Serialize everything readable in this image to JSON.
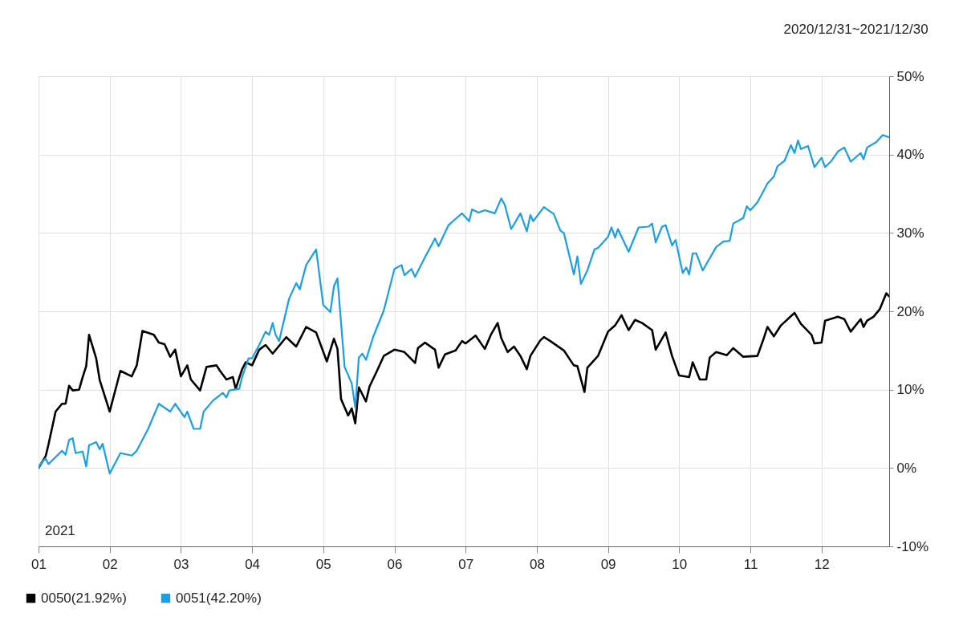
{
  "chart_data": {
    "type": "line",
    "subtitle": "2020/12/31~2021/12/30",
    "annotations": [
      "2021"
    ],
    "xlim": [
      1,
      12.95
    ],
    "xticks": [
      {
        "value": 1,
        "label": "01"
      },
      {
        "value": 2,
        "label": "02"
      },
      {
        "value": 3,
        "label": "03"
      },
      {
        "value": 4,
        "label": "04"
      },
      {
        "value": 5,
        "label": "05"
      },
      {
        "value": 6,
        "label": "06"
      },
      {
        "value": 7,
        "label": "07"
      },
      {
        "value": 8,
        "label": "08"
      },
      {
        "value": 9,
        "label": "09"
      },
      {
        "value": 10,
        "label": "10"
      },
      {
        "value": 11,
        "label": "11"
      },
      {
        "value": 12,
        "label": "12"
      }
    ],
    "ylim": [
      -10,
      50
    ],
    "yticks": [
      {
        "value": -10,
        "label": "-10%"
      },
      {
        "value": 0,
        "label": "0%"
      },
      {
        "value": 10,
        "label": "10%"
      },
      {
        "value": 20,
        "label": "20%"
      },
      {
        "value": 30,
        "label": "30%"
      },
      {
        "value": 40,
        "label": "40%"
      },
      {
        "value": 50,
        "label": "50%"
      }
    ],
    "grid": true,
    "legend": "bottom left",
    "marker": "none",
    "line_style": "solid",
    "series": [
      {
        "name": "0050(21.92%)",
        "color": "#000000",
        "x": [
          1.0,
          1.1,
          1.14,
          1.24,
          1.33,
          1.38,
          1.43,
          1.48,
          1.57,
          1.62,
          1.67,
          1.71,
          1.81,
          1.86,
          2.0,
          2.15,
          2.31,
          2.38,
          2.46,
          2.62,
          2.69,
          2.77,
          2.85,
          2.92,
          3.0,
          3.09,
          3.14,
          3.27,
          3.36,
          3.5,
          3.55,
          3.64,
          3.73,
          3.77,
          3.86,
          3.91,
          4.0,
          4.1,
          4.19,
          4.29,
          4.48,
          4.62,
          4.76,
          4.9,
          5.05,
          5.15,
          5.2,
          5.25,
          5.35,
          5.4,
          5.45,
          5.5,
          5.6,
          5.65,
          5.75,
          5.85,
          6.0,
          6.14,
          6.29,
          6.33,
          6.43,
          6.57,
          6.62,
          6.71,
          6.86,
          6.95,
          7.0,
          7.14,
          7.27,
          7.36,
          7.45,
          7.5,
          7.59,
          7.68,
          7.77,
          7.86,
          7.91,
          8.05,
          8.1,
          8.19,
          8.38,
          8.52,
          8.57,
          8.67,
          8.71,
          8.86,
          9.0,
          9.1,
          9.19,
          9.29,
          9.38,
          9.48,
          9.62,
          9.67,
          9.81,
          9.9,
          10.0,
          10.14,
          10.19,
          10.29,
          10.38,
          10.43,
          10.52,
          10.67,
          10.76,
          10.9,
          11.1,
          11.19,
          11.24,
          11.33,
          11.43,
          11.62,
          11.71,
          11.86,
          11.9,
          12.0,
          12.05,
          12.23,
          12.32,
          12.41,
          12.55,
          12.59,
          12.64,
          12.73,
          12.82,
          12.91,
          12.95
        ],
        "values": [
          0,
          1.5,
          3,
          7.2,
          8.2,
          8.2,
          10.5,
          9.9,
          10,
          11.6,
          13,
          17,
          14,
          11.2,
          7.2,
          12.4,
          11.7,
          13.1,
          17.5,
          17,
          16,
          15.8,
          14.2,
          15.1,
          11.7,
          13.1,
          11.3,
          9.9,
          12.9,
          13.1,
          12.4,
          11.3,
          11.6,
          10.1,
          12.6,
          13.5,
          13.1,
          15.1,
          15.7,
          14.6,
          16.7,
          15.5,
          18,
          17.3,
          13.6,
          16.5,
          15.2,
          8.8,
          6.7,
          7.6,
          5.7,
          10.3,
          8.5,
          10.4,
          12.3,
          14.3,
          15.1,
          14.8,
          13.4,
          15.3,
          16,
          15.1,
          12.8,
          14.5,
          15,
          16.2,
          15.9,
          16.9,
          15.2,
          17.1,
          18.5,
          16.6,
          14.8,
          15.5,
          14.3,
          12.6,
          14.3,
          16.3,
          16.7,
          16.2,
          15,
          13.1,
          13,
          9.7,
          12.8,
          14.3,
          17.4,
          18.2,
          19.5,
          17.6,
          18.9,
          18.5,
          17.6,
          15.1,
          17.3,
          14.3,
          11.8,
          11.6,
          13.5,
          11.3,
          11.3,
          14.1,
          14.8,
          14.4,
          15.3,
          14.2,
          14.3,
          16.6,
          18,
          16.8,
          18.2,
          19.8,
          18.4,
          17,
          15.9,
          16,
          18.8,
          19.3,
          19,
          17.4,
          19,
          18,
          18.8,
          19.3,
          20.3,
          22.3,
          21.9
        ]
      },
      {
        "name": "0051(42.20%)",
        "color": "#1a9fe3",
        "x": [
          1.0,
          1.05,
          1.1,
          1.14,
          1.33,
          1.38,
          1.43,
          1.48,
          1.52,
          1.62,
          1.67,
          1.71,
          1.81,
          1.86,
          1.9,
          2.0,
          2.15,
          2.31,
          2.38,
          2.54,
          2.69,
          2.85,
          2.92,
          3.05,
          3.09,
          3.18,
          3.27,
          3.32,
          3.45,
          3.59,
          3.64,
          3.68,
          3.82,
          3.86,
          3.95,
          4.0,
          4.1,
          4.19,
          4.24,
          4.29,
          4.33,
          4.38,
          4.52,
          4.62,
          4.67,
          4.76,
          4.9,
          5.0,
          5.1,
          5.15,
          5.2,
          5.3,
          5.4,
          5.45,
          5.5,
          5.55,
          5.6,
          5.7,
          5.85,
          6.0,
          6.1,
          6.14,
          6.24,
          6.29,
          6.43,
          6.57,
          6.62,
          6.76,
          6.86,
          6.95,
          7.05,
          7.09,
          7.18,
          7.27,
          7.41,
          7.5,
          7.55,
          7.64,
          7.77,
          7.86,
          7.91,
          7.95,
          8.1,
          8.24,
          8.33,
          8.38,
          8.52,
          8.57,
          8.62,
          8.71,
          8.81,
          8.86,
          9.0,
          9.05,
          9.1,
          9.14,
          9.29,
          9.43,
          9.57,
          9.62,
          9.67,
          9.76,
          9.81,
          9.9,
          9.95,
          10.05,
          10.1,
          10.14,
          10.19,
          10.24,
          10.33,
          10.52,
          10.62,
          10.71,
          10.76,
          10.9,
          10.95,
          11.0,
          11.1,
          11.24,
          11.33,
          11.38,
          11.48,
          11.57,
          11.62,
          11.67,
          11.71,
          11.81,
          11.9,
          12.0,
          12.05,
          12.14,
          12.23,
          12.32,
          12.41,
          12.55,
          12.59,
          12.64,
          12.77,
          12.86,
          12.95
        ],
        "values": [
          0,
          0.8,
          1.2,
          0.5,
          2.2,
          1.7,
          3.6,
          3.8,
          1.9,
          2.1,
          0.2,
          2.9,
          3.3,
          2.4,
          3.1,
          -0.7,
          1.9,
          1.6,
          2.2,
          5,
          8.2,
          7.2,
          8.2,
          6.5,
          7.2,
          5,
          5,
          7.2,
          8.6,
          9.6,
          9,
          9.9,
          10.1,
          11.6,
          14,
          14,
          15.7,
          17.4,
          17,
          18.5,
          17,
          16.2,
          21.6,
          23.6,
          22.8,
          25.9,
          27.9,
          20.8,
          19.9,
          23.2,
          24.2,
          12.9,
          10.8,
          7.7,
          14.1,
          14.6,
          13.8,
          16.7,
          20.1,
          25.4,
          25.9,
          24.6,
          25.4,
          24.4,
          26.9,
          29.3,
          28.3,
          31,
          31.8,
          32.5,
          31.5,
          33,
          32.6,
          32.9,
          32.5,
          34.4,
          33.6,
          30.5,
          32.5,
          30.2,
          32.3,
          31.5,
          33.3,
          32.4,
          30.3,
          30,
          24.7,
          27,
          23.5,
          25.2,
          27.9,
          28.1,
          29.5,
          30.7,
          29.4,
          30.5,
          27.6,
          30.7,
          30.8,
          31.2,
          28.8,
          30.8,
          31,
          28.4,
          29.1,
          24.9,
          25.6,
          24.7,
          27.4,
          27.4,
          25.2,
          28.2,
          28.9,
          29,
          31.2,
          31.9,
          33.4,
          32.9,
          33.9,
          36.3,
          37.2,
          38.5,
          39.2,
          41.2,
          40.2,
          41.8,
          40.7,
          41.1,
          38.4,
          39.6,
          38.4,
          39.2,
          40.4,
          40.9,
          39.1,
          40.2,
          39.4,
          40.9,
          41.6,
          42.5,
          42.2
        ]
      }
    ]
  }
}
